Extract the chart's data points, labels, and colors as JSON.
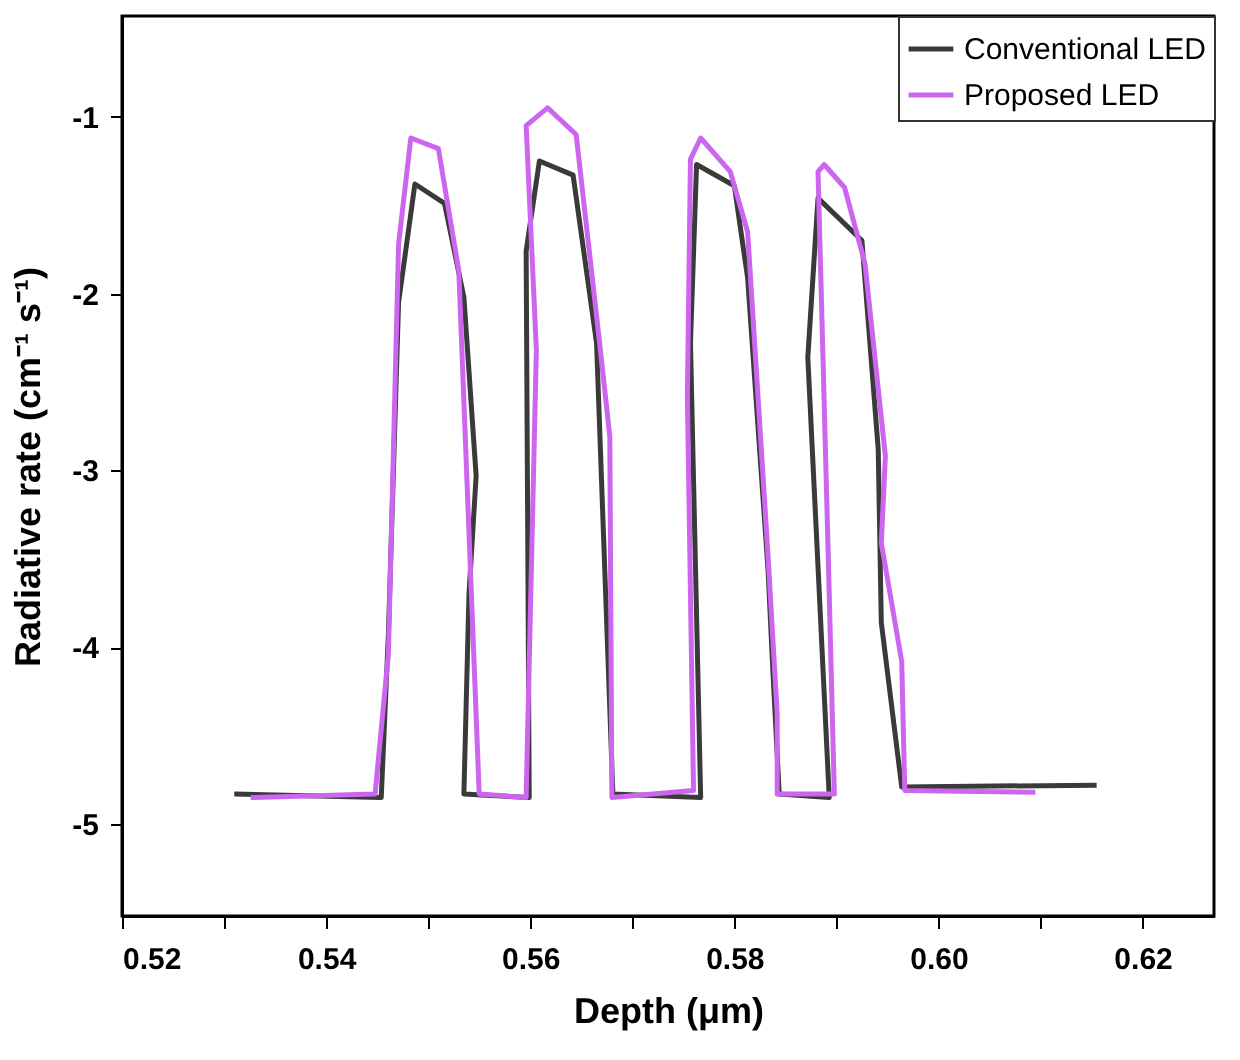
{
  "chart_data": {
    "type": "line",
    "xlabel": "Depth (μm)",
    "ylabel": "Radiative rate (cm⁻¹ s⁻¹)",
    "xlim": [
      0.52,
      0.627
    ],
    "ylim": [
      -5.52,
      -0.43
    ],
    "xticks": [
      0.52,
      {
        "value": 0.53,
        "label": null
      },
      0.54,
      {
        "value": 0.55,
        "label": null
      },
      0.56,
      {
        "value": 0.57,
        "label": null
      },
      0.58,
      {
        "value": 0.59,
        "label": null
      },
      {
        "value": 0.6,
        "label": "0.60"
      },
      {
        "value": 0.61,
        "label": null
      },
      0.62
    ],
    "yticks": [
      -5,
      -4,
      -3,
      -2,
      -1
    ],
    "grid": false,
    "legend": "top right",
    "line_style": "solid",
    "marker": "none",
    "series": [
      {
        "name": "Conventional LED",
        "color": "#3a3a3a",
        "x": [
          0.531,
          0.5454,
          0.5461,
          0.5471,
          0.5487,
          0.5516,
          0.5535,
          0.5547,
          0.554,
          0.5535,
          0.5599,
          0.5596,
          0.5609,
          0.5642,
          0.5665,
          0.5681,
          0.5767,
          0.5757,
          0.5763,
          0.58,
          0.5813,
          0.5833,
          0.5838,
          0.5844,
          0.5893,
          0.5872,
          0.5882,
          0.5925,
          0.5941,
          0.5944,
          0.5964,
          0.6155
        ],
        "values": [
          -4.83,
          -4.85,
          -3.93,
          -2.05,
          -1.38,
          -1.49,
          -2.02,
          -3.03,
          -3.7,
          -4.83,
          -4.85,
          -1.76,
          -1.25,
          -1.33,
          -2.28,
          -4.83,
          -4.85,
          -2.28,
          -1.27,
          -1.39,
          -1.91,
          -3.56,
          -4.16,
          -4.83,
          -4.85,
          -2.36,
          -1.46,
          -1.7,
          -2.88,
          -3.86,
          -4.79,
          -4.78
        ]
      },
      {
        "name": "Proposed LED",
        "color": "#cc66ee",
        "x": [
          0.5326,
          0.5448,
          0.5461,
          0.5471,
          0.5483,
          0.551,
          0.553,
          0.555,
          0.5596,
          0.5606,
          0.5596,
          0.5617,
          0.5645,
          0.5668,
          0.5678,
          0.568,
          0.576,
          0.5754,
          0.5757,
          0.5767,
          0.5796,
          0.5813,
          0.5833,
          0.5842,
          0.5842,
          0.5898,
          0.5892,
          0.5882,
          0.5888,
          0.5908,
          0.5928,
          0.5948,
          0.5944,
          0.5964,
          0.5967,
          0.6095
        ],
        "values": [
          -4.85,
          -4.83,
          -4.04,
          -1.72,
          -1.12,
          -1.18,
          -1.87,
          -4.83,
          -4.85,
          -2.32,
          -1.05,
          -0.95,
          -1.1,
          -2.28,
          -2.81,
          -4.85,
          -4.81,
          -2.58,
          -1.24,
          -1.12,
          -1.31,
          -1.65,
          -3.48,
          -4.38,
          -4.83,
          -4.83,
          -3.48,
          -1.31,
          -1.27,
          -1.4,
          -1.83,
          -2.92,
          -3.41,
          -4.08,
          -4.81,
          -4.82
        ]
      }
    ]
  }
}
